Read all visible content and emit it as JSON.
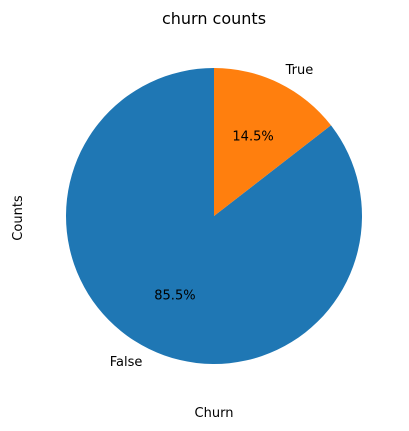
{
  "chart_data": {
    "type": "pie",
    "title": "churn counts",
    "xlabel": "Churn",
    "ylabel": "Counts",
    "categories": [
      "False",
      "True"
    ],
    "values": [
      85.5,
      14.5
    ],
    "autopct_labels": [
      "85.5%",
      "14.5%"
    ],
    "colors": [
      "#1f77b4",
      "#ff7f0e"
    ],
    "start_angle_deg": 90,
    "direction": "counterclockwise"
  }
}
